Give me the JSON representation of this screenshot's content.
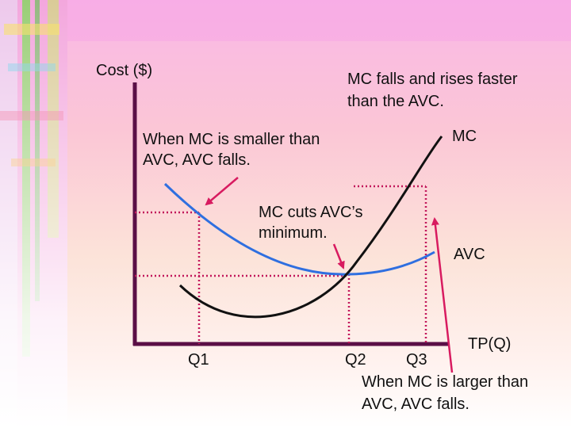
{
  "chart_data": {
    "type": "line",
    "ylabel": "Cost ($)",
    "xlabel": "TP(Q)",
    "series": [
      {
        "name": "MC",
        "color": "#000000"
      },
      {
        "name": "AVC",
        "color": "#2f6fe0"
      }
    ],
    "x_markers": [
      "Q1",
      "Q2",
      "Q3"
    ],
    "annotations": {
      "mc_rises_faster": "MC falls and rises faster than the AVC.",
      "mc_smaller": "When MC is smaller than AVC, AVC falls.",
      "mc_cuts_min": "MC cuts AVC’s minimum.",
      "mc_larger": "When MC is larger than AVC, AVC falls."
    },
    "colors": {
      "axis": "#5a0f46",
      "guide": "#c2185b",
      "arrow": "#d81b60",
      "text": "#111111"
    }
  }
}
